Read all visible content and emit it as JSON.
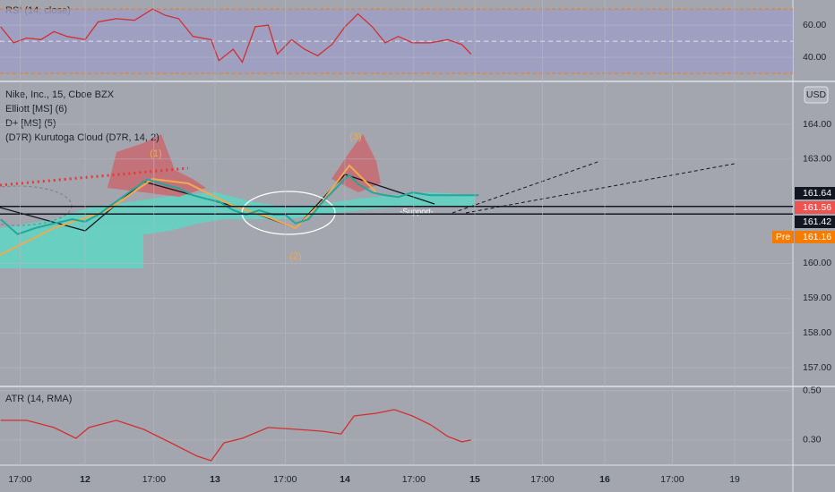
{
  "chart_data": [
    {
      "type": "line",
      "title": "RSI (14, close)",
      "color": "#d32f2f",
      "x": [
        11.35,
        11.45,
        11.55,
        11.66,
        11.76,
        11.86,
        12.0,
        12.1,
        12.24,
        12.38,
        12.52,
        12.62,
        12.72,
        12.83,
        12.97,
        13.03,
        13.14,
        13.21,
        13.31,
        13.41,
        13.48,
        13.59,
        13.69,
        13.79,
        13.9,
        14.0,
        14.1,
        14.21,
        14.31,
        14.41,
        14.52,
        14.66,
        14.79,
        14.9,
        14.97
      ],
      "values": [
        59,
        49,
        52,
        51,
        56,
        53,
        51,
        62,
        64,
        63,
        70,
        66,
        64,
        53,
        51,
        38,
        45,
        37,
        59,
        60,
        42,
        51,
        45,
        41,
        48,
        59,
        67,
        59,
        49,
        53,
        49,
        49,
        51,
        48,
        42
      ],
      "xlim": [
        11.345,
        17.448
      ],
      "ylim": [
        25.6,
        75.6
      ],
      "yticks": [
        {
          "value": 60,
          "label": "60.00"
        },
        {
          "value": 40,
          "label": "40.00"
        }
      ],
      "band": [
        30,
        70
      ],
      "band_color": "#9d9ec7",
      "midline": 50
    },
    {
      "type": "line",
      "title": "Nike, Inc., 15, Cboe BZX",
      "subtitles": [
        "Elliott [MS] (6)",
        "D+ [MS] (5)",
        "(D7R) Kurutoga Cloud (D7R, 14, 2)"
      ],
      "currency": "USD",
      "color": "#26a69a",
      "x": [
        11.35,
        11.48,
        11.62,
        11.76,
        11.9,
        12.0,
        12.1,
        12.24,
        12.38,
        12.48,
        12.59,
        12.72,
        12.83,
        12.93,
        13.03,
        13.14,
        13.24,
        13.34,
        13.45,
        13.54,
        13.62,
        13.72,
        13.83,
        13.93,
        14.03,
        14.1,
        14.21,
        14.31,
        14.41,
        14.52,
        14.66,
        14.79,
        14.93,
        15.03
      ],
      "values": [
        161.27,
        160.84,
        161.02,
        161.15,
        161.27,
        161.2,
        161.4,
        161.78,
        162.16,
        162.42,
        162.29,
        162.16,
        161.96,
        161.86,
        161.78,
        161.53,
        161.4,
        161.53,
        161.4,
        161.4,
        161.15,
        161.27,
        161.78,
        162.16,
        162.54,
        162.29,
        162.04,
        161.96,
        161.91,
        162.04,
        161.96,
        161.96,
        161.96,
        161.96
      ],
      "xlim": [
        11.345,
        17.448
      ],
      "ylim": [
        156.46,
        165.21
      ],
      "yticks": [
        {
          "value": 164,
          "label": "164.00"
        },
        {
          "value": 163,
          "label": "163.00"
        },
        {
          "value": 160,
          "label": "160.00"
        },
        {
          "value": 159,
          "label": "159.00"
        },
        {
          "value": 158,
          "label": "158.00"
        },
        {
          "value": 157,
          "label": "157.00"
        }
      ],
      "wave_labels": [
        "(1)",
        "(2)",
        "(3)"
      ],
      "support_label": "-Support-",
      "levels": [
        161.64,
        161.56,
        161.42,
        161.16
      ],
      "level_colors": [
        "#131722",
        "#ef5350",
        "#131722",
        "#f57c00"
      ],
      "pre_label": "Pre"
    },
    {
      "type": "line",
      "title": "ATR (14, RMA)",
      "color": "#d32f2f",
      "x": [
        11.35,
        11.55,
        11.76,
        11.93,
        12.03,
        12.24,
        12.45,
        12.66,
        12.86,
        12.97,
        13.07,
        13.21,
        13.41,
        13.62,
        13.83,
        13.97,
        14.07,
        14.24,
        14.38,
        14.52,
        14.66,
        14.79,
        14.9,
        14.97
      ],
      "values": [
        0.38,
        0.38,
        0.351,
        0.307,
        0.351,
        0.38,
        0.344,
        0.289,
        0.235,
        0.216,
        0.289,
        0.307,
        0.351,
        0.344,
        0.336,
        0.325,
        0.398,
        0.409,
        0.424,
        0.398,
        0.362,
        0.315,
        0.293,
        0.3
      ],
      "xlim": [
        11.345,
        17.448
      ],
      "ylim": [
        0.198,
        0.518
      ],
      "yticks": [
        {
          "value": 0.5,
          "label": "0.50"
        },
        {
          "value": 0.3,
          "label": "0.30"
        }
      ],
      "xticks": [
        {
          "value": 11.5,
          "label": "17:00"
        },
        12,
        {
          "value": 12.53,
          "label": "17:00"
        },
        13,
        {
          "value": 13.54,
          "label": "17:00"
        },
        14,
        {
          "value": 14.53,
          "label": "17:00"
        },
        15,
        {
          "value": 15.52,
          "label": "17:00"
        },
        16,
        {
          "value": 16.52,
          "label": "17:00"
        },
        {
          "value": 17,
          "label": "19"
        }
      ]
    }
  ]
}
